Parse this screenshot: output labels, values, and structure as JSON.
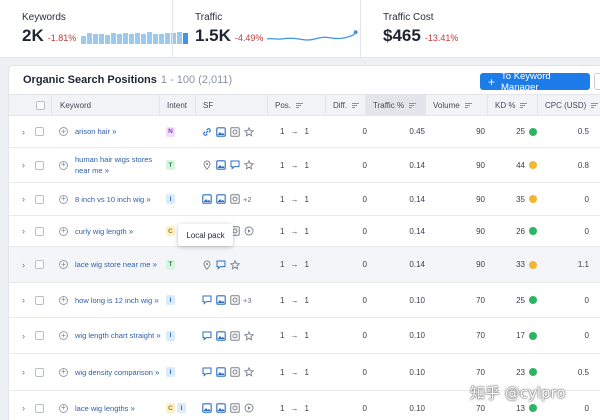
{
  "metrics": {
    "keywords": {
      "label": "Keywords",
      "value": "2K",
      "delta": "-1.81%",
      "bars": [
        0.55,
        0.8,
        0.7,
        0.75,
        0.65,
        0.8,
        0.7,
        0.78,
        0.72,
        0.8,
        0.68,
        0.85,
        0.75,
        0.7,
        0.8,
        0.78,
        0.85,
        0.8
      ]
    },
    "traffic": {
      "label": "Traffic",
      "value": "1.5K",
      "delta": "-4.49%"
    },
    "traffic_cost": {
      "label": "Traffic Cost",
      "value": "$465",
      "delta": "-13.41%"
    }
  },
  "panel": {
    "title": "Organic Search Positions",
    "range": "1 - 100 (2,011)",
    "button_label": "To Keyword Manager"
  },
  "columns": {
    "keyword": "Keyword",
    "intent": "Intent",
    "sf": "SF",
    "pos": "Pos.",
    "diff": "Diff.",
    "traffic": "Traffic %",
    "volume": "Volume",
    "kd": "KD %",
    "cpc": "CPC (USD)"
  },
  "rows": [
    {
      "keyword": "arison hair",
      "intent": [
        "N"
      ],
      "sf": [
        "link-icon",
        "image-pack-icon",
        "video-icon",
        "star-icon"
      ],
      "sf_more": "",
      "pos_from": "1",
      "pos_to": "1",
      "diff": "0",
      "traffic": "0.45",
      "volume": "90",
      "kd": "25",
      "kd_color": "#2fb463",
      "cpc": "0.5"
    },
    {
      "keyword": "human hair wigs stores near me",
      "intent": [
        "T"
      ],
      "sf": [
        "pin-icon",
        "image-pack-icon",
        "comment-icon",
        "star-icon"
      ],
      "sf_more": "",
      "pos_from": "1",
      "pos_to": "1",
      "diff": "0",
      "traffic": "0.14",
      "volume": "90",
      "kd": "44",
      "kd_color": "#f2b634",
      "cpc": "0.8"
    },
    {
      "keyword": "8 inch vs 10 inch wig",
      "intent": [
        "I"
      ],
      "sf": [
        "image-pack-icon",
        "image-pack-icon",
        "video-icon"
      ],
      "sf_more": "+2",
      "pos_from": "1",
      "pos_to": "1",
      "diff": "0",
      "traffic": "0.14",
      "volume": "90",
      "kd": "35",
      "kd_color": "#f2b634",
      "cpc": "0"
    },
    {
      "keyword": "curly wig length",
      "intent": [
        "C"
      ],
      "sf": [
        "image-pack-icon",
        "image-pack-icon",
        "video-icon",
        "play-icon"
      ],
      "sf_more": "",
      "pos_from": "1",
      "pos_to": "1",
      "diff": "0",
      "traffic": "0.14",
      "volume": "90",
      "kd": "26",
      "kd_color": "#2fb463",
      "cpc": "0"
    },
    {
      "keyword": "lace wig store near me",
      "intent": [
        "T"
      ],
      "sf": [
        "pin-icon",
        "comment-icon",
        "star-icon"
      ],
      "sf_more": "",
      "pos_from": "1",
      "pos_to": "1",
      "diff": "0",
      "traffic": "0.14",
      "volume": "90",
      "kd": "33",
      "kd_color": "#f2b634",
      "cpc": "1.1"
    },
    {
      "keyword": "how long is 12 inch wig",
      "intent": [
        "I"
      ],
      "sf": [
        "comment-icon",
        "image-pack-icon",
        "video-icon"
      ],
      "sf_more": "+3",
      "pos_from": "1",
      "pos_to": "1",
      "diff": "0",
      "traffic": "0.10",
      "volume": "70",
      "kd": "25",
      "kd_color": "#2fb463",
      "cpc": "0"
    },
    {
      "keyword": "wig length chart straight",
      "intent": [
        "I"
      ],
      "sf": [
        "comment-icon",
        "image-pack-icon",
        "video-icon",
        "star-icon"
      ],
      "sf_more": "",
      "pos_from": "1",
      "pos_to": "1",
      "diff": "0",
      "traffic": "0.10",
      "volume": "70",
      "kd": "17",
      "kd_color": "#2fb463",
      "cpc": "0"
    },
    {
      "keyword": "wig density comparison",
      "intent": [
        "I"
      ],
      "sf": [
        "comment-icon",
        "image-pack-icon",
        "video-icon",
        "star-icon"
      ],
      "sf_more": "",
      "pos_from": "1",
      "pos_to": "1",
      "diff": "0",
      "traffic": "0.10",
      "volume": "70",
      "kd": "23",
      "kd_color": "#2fb463",
      "cpc": "0.5"
    },
    {
      "keyword": "lace wig lengths",
      "intent": [
        "C",
        "I"
      ],
      "sf": [
        "image-pack-icon",
        "image-pack-icon",
        "video-icon",
        "play-icon"
      ],
      "sf_more": "",
      "pos_from": "1",
      "pos_to": "1",
      "diff": "0",
      "traffic": "0.10",
      "volume": "70",
      "kd": "13",
      "kd_color": "#2fb463",
      "cpc": "0"
    }
  ],
  "tooltip": "Local pack",
  "watermark": "知乎 @cylpro",
  "colors": {
    "accent": "#1e7ce8",
    "negative": "#c23b3b",
    "link": "#2f5fa8"
  }
}
